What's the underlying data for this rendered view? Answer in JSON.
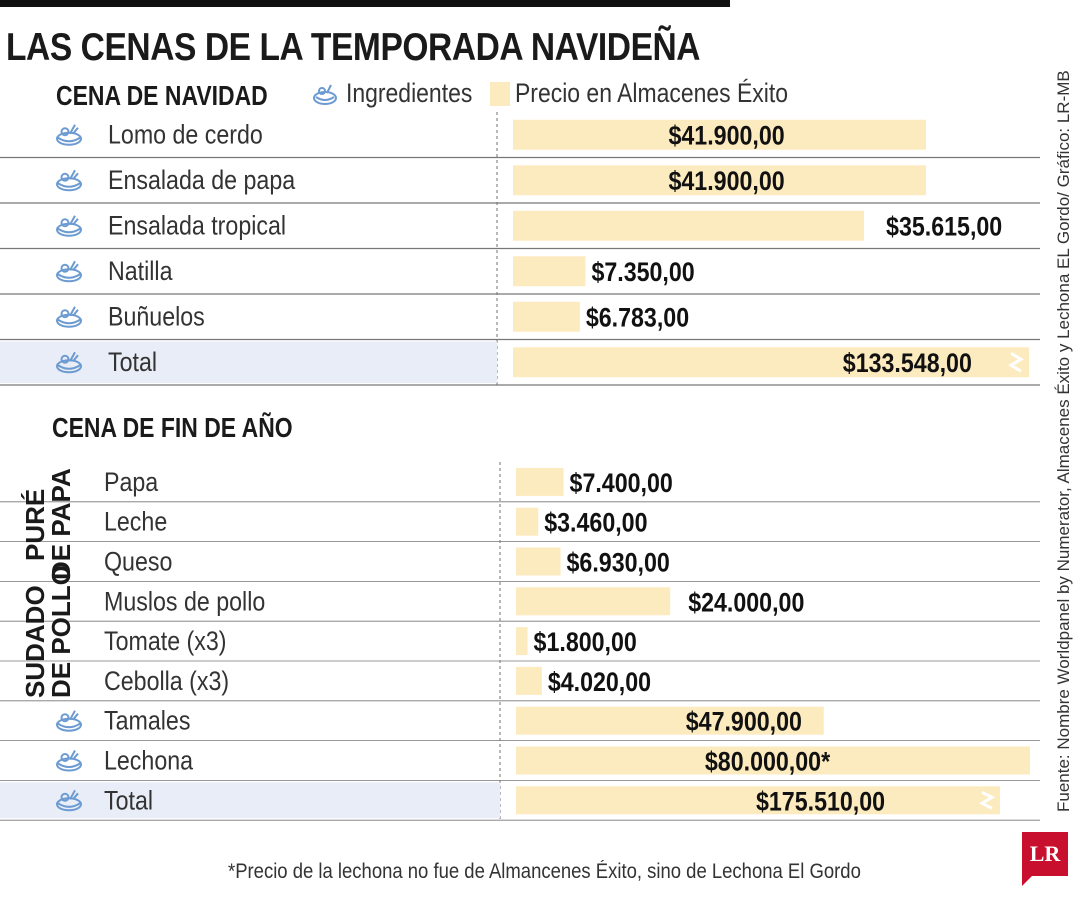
{
  "header": {
    "title": "LAS CENAS DE LA TEMPORADA NAVIDEÑA"
  },
  "legend": {
    "ingredients": "Ingredientes",
    "price": "Precio en Almacenes Éxito"
  },
  "source": "Fuente: Nombre Worldpanel by Numerator, Almacenes Éxito y Lechona EL Gordo/ Gráfico: LR-MB",
  "footnote": "*Precio de la lechona no fue de Almancenes Éxito, sino de Lechona El Gordo",
  "logo": "LR",
  "colors": {
    "bar": "#fdebc0",
    "highlight": "#e9edf7",
    "icon": "#6c9bd2",
    "line": "#888888"
  },
  "chart_data": [
    {
      "type": "bar",
      "title": "CENA DE NAVIDAD",
      "categories": [
        "Lomo de cerdo",
        "Ensalada de papa",
        "Ensalada tropical",
        "Natilla",
        "Buñuelos",
        "Total"
      ],
      "values": [
        41900,
        41900,
        35615,
        7350,
        6783,
        133548
      ],
      "labels": [
        "$41.900,00",
        "$41.900,00",
        "$35.615,00",
        "$7.350,00",
        "$6.783,00",
        "$133.548,00"
      ],
      "scale_max": 41900,
      "truncated": [
        false,
        false,
        false,
        false,
        false,
        true
      ],
      "ylabel": "Ingredientes",
      "xlabel": "Precio en Almacenes Éxito"
    },
    {
      "type": "bar",
      "title": "CENA DE FIN DE AÑO",
      "categories": [
        "Papa",
        "Leche",
        "Queso",
        "Muslos de pollo",
        "Tomate (x3)",
        "Cebolla (x3)",
        "Tamales",
        "Lechona",
        "Total"
      ],
      "values": [
        7400,
        3460,
        6930,
        24000,
        1800,
        4020,
        47900,
        80000,
        175510
      ],
      "labels": [
        "$7.400,00",
        "$3.460,00",
        "$6.930,00",
        "$24.000,00",
        "$1.800,00",
        "$4.020,00",
        "$47.900,00",
        "$80.000,00*",
        "$175.510,00"
      ],
      "scale_max": 80000,
      "truncated": [
        false,
        false,
        false,
        false,
        false,
        false,
        false,
        false,
        true
      ],
      "groups": [
        {
          "name": "PURÉ DE PAPA",
          "lines": [
            "PURÉ",
            "DE PAPA"
          ],
          "items": [
            "Papa",
            "Leche",
            "Queso"
          ]
        },
        {
          "name": "SUDADO DE POLLO",
          "lines": [
            "SUDADO",
            "DE POLLO"
          ],
          "items": [
            "Muslos de pollo",
            "Tomate (x3)",
            "Cebolla (x3)"
          ]
        }
      ]
    }
  ]
}
